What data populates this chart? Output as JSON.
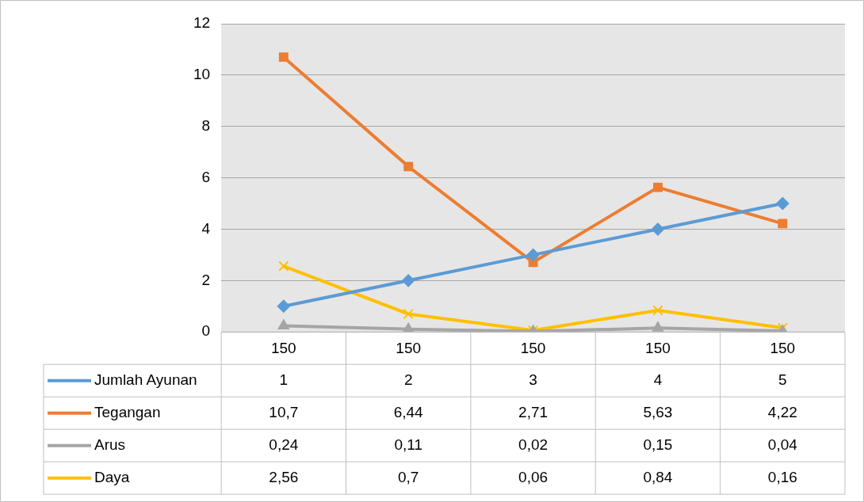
{
  "chart_data": {
    "type": "line",
    "categories": [
      "150",
      "150",
      "150",
      "150",
      "150"
    ],
    "series": [
      {
        "name": "Jumlah Ayunan",
        "color": "#5b9bd5",
        "marker": "diamond",
        "values": [
          1,
          2,
          3,
          4,
          5
        ],
        "value_labels": [
          "1",
          "2",
          "3",
          "4",
          "5"
        ]
      },
      {
        "name": "Tegangan",
        "color": "#ed7d31",
        "marker": "square",
        "values": [
          10.7,
          6.44,
          2.71,
          5.63,
          4.22
        ],
        "value_labels": [
          "10,7",
          "6,44",
          "2,71",
          "5,63",
          "4,22"
        ]
      },
      {
        "name": "Arus",
        "color": "#a5a5a5",
        "marker": "triangle",
        "values": [
          0.24,
          0.11,
          0.02,
          0.15,
          0.04
        ],
        "value_labels": [
          "0,24",
          "0,11",
          "0,02",
          "0,15",
          "0,04"
        ]
      },
      {
        "name": "Daya",
        "color": "#ffc000",
        "marker": "cross",
        "values": [
          2.56,
          0.7,
          0.06,
          0.84,
          0.16
        ],
        "value_labels": [
          "2,56",
          "0,7",
          "0,06",
          "0,84",
          "0,16"
        ]
      }
    ],
    "ylim": [
      0,
      12
    ],
    "yticks": [
      0,
      2,
      4,
      6,
      8,
      10,
      12
    ],
    "grid": "y",
    "legend": "bottom"
  }
}
